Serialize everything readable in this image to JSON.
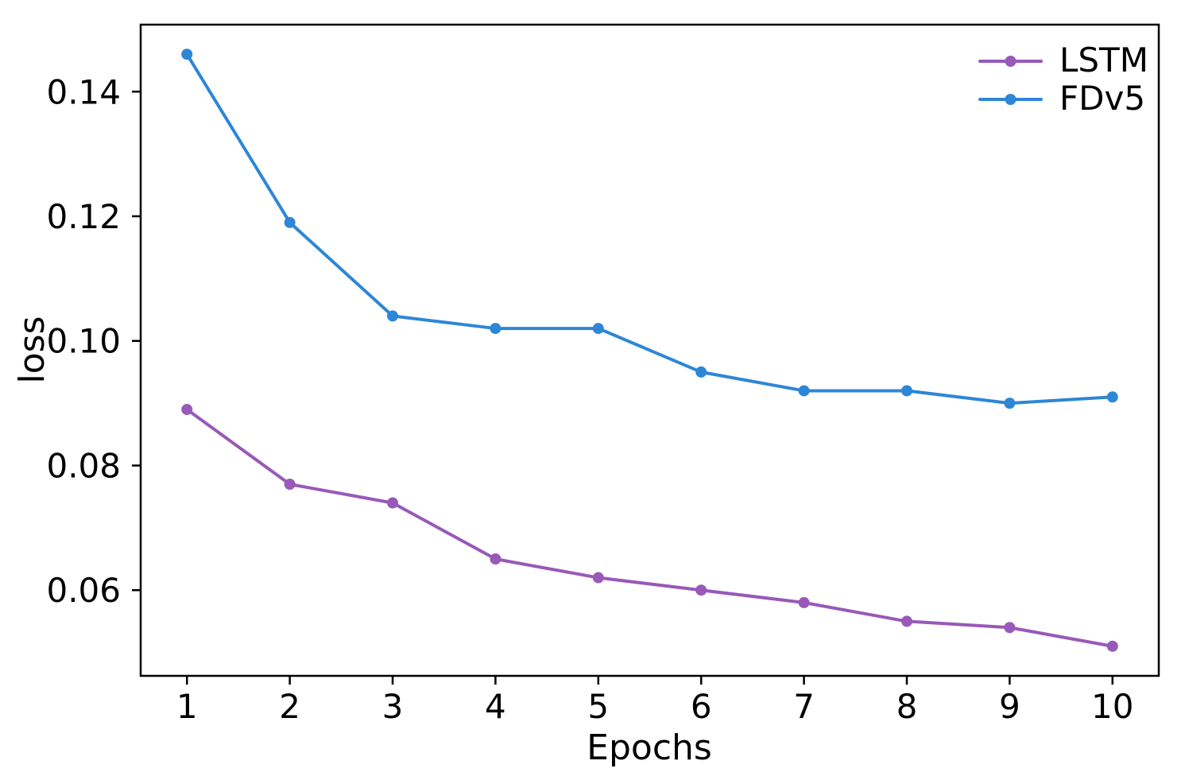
{
  "chart_data": {
    "type": "line",
    "title": "",
    "xlabel": "Epochs",
    "ylabel": "loss",
    "x": [
      1,
      2,
      3,
      4,
      5,
      6,
      7,
      8,
      9,
      10
    ],
    "series": [
      {
        "name": "LSTM",
        "color": "#9859b8",
        "marker": "circle",
        "values": [
          0.089,
          0.077,
          0.074,
          0.065,
          0.062,
          0.06,
          0.058,
          0.055,
          0.054,
          0.051
        ]
      },
      {
        "name": "FDv5",
        "color": "#2e86d6",
        "marker": "circle",
        "values": [
          0.146,
          0.119,
          0.104,
          0.102,
          0.102,
          0.095,
          0.092,
          0.092,
          0.09,
          0.091
        ]
      }
    ],
    "xlim": [
      0.55,
      10.45
    ],
    "ylim": [
      0.04625,
      0.15075
    ],
    "xticks": [
      1,
      2,
      3,
      4,
      5,
      6,
      7,
      8,
      9,
      10
    ],
    "xtick_labels": [
      "1",
      "2",
      "3",
      "4",
      "5",
      "6",
      "7",
      "8",
      "9",
      "10"
    ],
    "yticks": [
      0.06,
      0.08,
      0.1,
      0.12,
      0.14
    ],
    "ytick_labels": [
      "0.06",
      "0.08",
      "0.10",
      "0.12",
      "0.14"
    ],
    "legend_position": "upper right",
    "grid": false,
    "axis_color": "#000000",
    "text_color": "#000000",
    "background_color": "#ffffff"
  }
}
